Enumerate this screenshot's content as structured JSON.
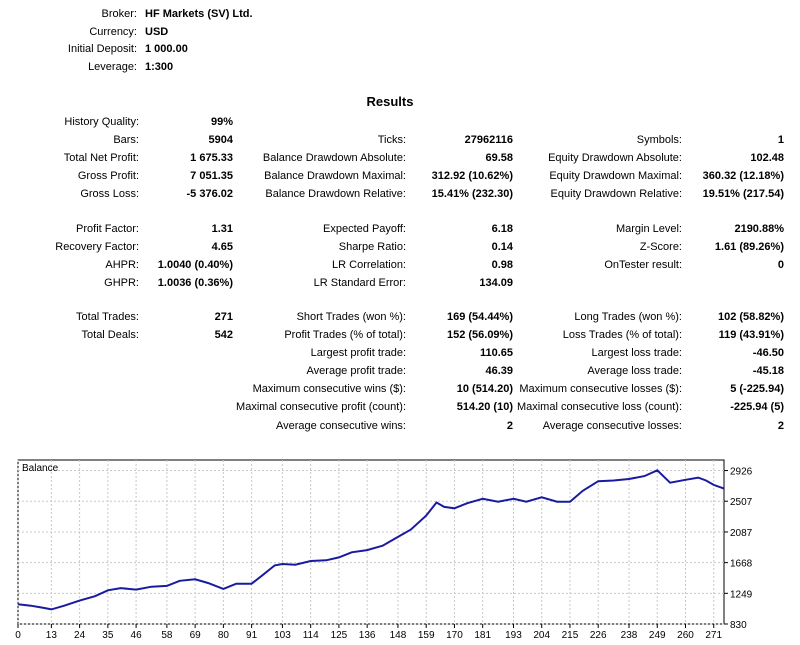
{
  "header": {
    "broker_label": "Broker:",
    "broker_value": "HF Markets (SV) Ltd.",
    "currency_label": "Currency:",
    "currency_value": "USD",
    "deposit_label": "Initial Deposit:",
    "deposit_value": "1 000.00",
    "leverage_label": "Leverage:",
    "leverage_value": "1:300"
  },
  "results_title": "Results",
  "results": [
    {
      "label": "History Quality:",
      "value": "99%"
    },
    {
      "label": "Bars:",
      "value": "5904"
    },
    {
      "label": "Ticks:",
      "value": "27962116"
    },
    {
      "label": "Symbols:",
      "value": "1"
    },
    {
      "label": "Total Net Profit:",
      "value": "1 675.33"
    },
    {
      "label": "Balance Drawdown Absolute:",
      "value": "69.58"
    },
    {
      "label": "Equity Drawdown Absolute:",
      "value": "102.48"
    },
    {
      "label": "Gross Profit:",
      "value": "7 051.35"
    },
    {
      "label": "Balance Drawdown Maximal:",
      "value": "312.92 (10.62%)"
    },
    {
      "label": "Equity Drawdown Maximal:",
      "value": "360.32 (12.18%)"
    },
    {
      "label": "Gross Loss:",
      "value": "-5 376.02"
    },
    {
      "label": "Balance Drawdown Relative:",
      "value": "15.41% (232.30)"
    },
    {
      "label": "Equity Drawdown Relative:",
      "value": "19.51% (217.54)"
    },
    {
      "label": "Profit Factor:",
      "value": "1.31"
    },
    {
      "label": "Expected Payoff:",
      "value": "6.18"
    },
    {
      "label": "Margin Level:",
      "value": "2190.88%"
    },
    {
      "label": "Recovery Factor:",
      "value": "4.65"
    },
    {
      "label": "Sharpe Ratio:",
      "value": "0.14"
    },
    {
      "label": "Z-Score:",
      "value": "1.61 (89.26%)"
    },
    {
      "label": "AHPR:",
      "value": "1.0040 (0.40%)"
    },
    {
      "label": "LR Correlation:",
      "value": "0.98"
    },
    {
      "label": "OnTester result:",
      "value": "0"
    },
    {
      "label": "GHPR:",
      "value": "1.0036 (0.36%)"
    },
    {
      "label": "LR Standard Error:",
      "value": "134.09"
    },
    {
      "label": "Total Trades:",
      "value": "271"
    },
    {
      "label": "Short Trades (won %):",
      "value": "169 (54.44%)"
    },
    {
      "label": "Long Trades (won %):",
      "value": "102 (58.82%)"
    },
    {
      "label": "Total Deals:",
      "value": "542"
    },
    {
      "label": "Profit Trades (% of total):",
      "value": "152 (56.09%)"
    },
    {
      "label": "Loss Trades (% of total):",
      "value": "119 (43.91%)"
    },
    {
      "label": "Largest profit trade:",
      "value": "110.65"
    },
    {
      "label": "Largest loss trade:",
      "value": "-46.50"
    },
    {
      "label": "Average profit trade:",
      "value": "46.39"
    },
    {
      "label": "Average loss trade:",
      "value": "-45.18"
    },
    {
      "label": "Maximum consecutive wins ($):",
      "value": "10 (514.20)"
    },
    {
      "label": "Maximum consecutive losses ($):",
      "value": "5 (-225.94)"
    },
    {
      "label": "Maximal consecutive profit (count):",
      "value": "514.20 (10)"
    },
    {
      "label": "Maximal consecutive loss (count):",
      "value": "-225.94 (5)"
    },
    {
      "label": "Average consecutive wins:",
      "value": "2"
    },
    {
      "label": "Average consecutive losses:",
      "value": "2"
    }
  ],
  "chart_data": {
    "type": "line",
    "title": "Balance",
    "line_color": "#1a1aa0",
    "x_ticks": [
      0,
      13,
      24,
      35,
      46,
      58,
      69,
      80,
      91,
      103,
      114,
      125,
      136,
      148,
      159,
      170,
      181,
      193,
      204,
      215,
      226,
      238,
      249,
      260,
      271
    ],
    "y_ticks": [
      830,
      1249,
      1668,
      2087,
      2507,
      2926
    ],
    "xlim": [
      0,
      275
    ],
    "ylim": [
      830,
      3070
    ],
    "grid": true,
    "x": [
      0,
      5,
      10,
      13,
      18,
      24,
      30,
      35,
      40,
      46,
      52,
      58,
      63,
      69,
      74,
      80,
      85,
      91,
      95,
      100,
      103,
      108,
      114,
      120,
      125,
      130,
      136,
      142,
      148,
      153,
      159,
      163,
      166,
      170,
      175,
      181,
      187,
      193,
      198,
      204,
      210,
      215,
      220,
      226,
      232,
      238,
      244,
      249,
      254,
      260,
      265,
      268,
      271,
      275
    ],
    "y": [
      1100,
      1080,
      1050,
      1030,
      1080,
      1150,
      1210,
      1290,
      1320,
      1300,
      1340,
      1350,
      1420,
      1440,
      1390,
      1310,
      1380,
      1380,
      1490,
      1630,
      1650,
      1640,
      1690,
      1700,
      1740,
      1810,
      1840,
      1900,
      2020,
      2120,
      2310,
      2490,
      2430,
      2410,
      2480,
      2540,
      2500,
      2540,
      2500,
      2560,
      2500,
      2500,
      2650,
      2780,
      2790,
      2810,
      2850,
      2930,
      2760,
      2800,
      2830,
      2790,
      2730,
      2680
    ]
  }
}
